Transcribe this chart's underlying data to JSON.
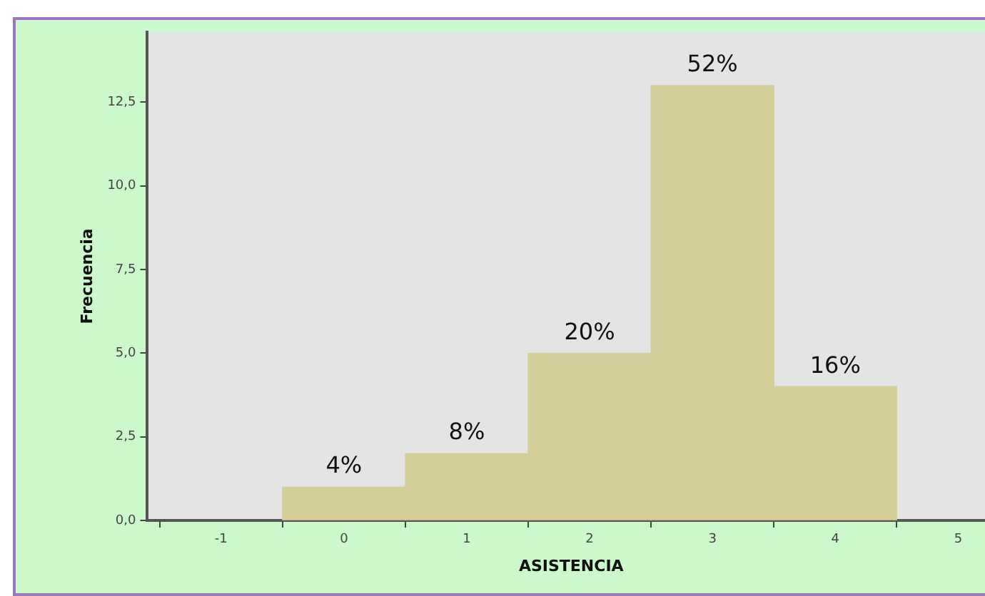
{
  "chart_data": {
    "type": "histogram",
    "xlabel": "ASISTENCIA",
    "ylabel": "Frecuencia",
    "bins": [
      -0.5,
      0.5,
      1.5,
      2.5,
      3.5,
      4.5
    ],
    "values": [
      1,
      2,
      5,
      13,
      4
    ],
    "color": "#d4cf99",
    "annotations": [
      {
        "text": "4%",
        "x": 0,
        "y": 1
      },
      {
        "text": "8%",
        "x": 1,
        "y": 2
      },
      {
        "text": "20%",
        "x": 2,
        "y": 5
      },
      {
        "text": "52%",
        "x": 3,
        "y": 13
      },
      {
        "text": "16%",
        "x": 4,
        "y": 4
      }
    ],
    "xlim": [
      -1.6,
      5.3
    ],
    "xticks": [
      -1,
      0,
      1,
      2,
      3,
      4,
      5
    ],
    "ylim": [
      0,
      14.6
    ],
    "yticks": [
      {
        "value": 0,
        "label": "0,0"
      },
      {
        "value": 2.5,
        "label": "2,5"
      },
      {
        "value": 5,
        "label": "5,0"
      },
      {
        "value": 7.5,
        "label": "7,5"
      },
      {
        "value": 10,
        "label": "10,0"
      },
      {
        "value": 12.5,
        "label": "12,5"
      }
    ],
    "grid": false,
    "legend": false
  }
}
